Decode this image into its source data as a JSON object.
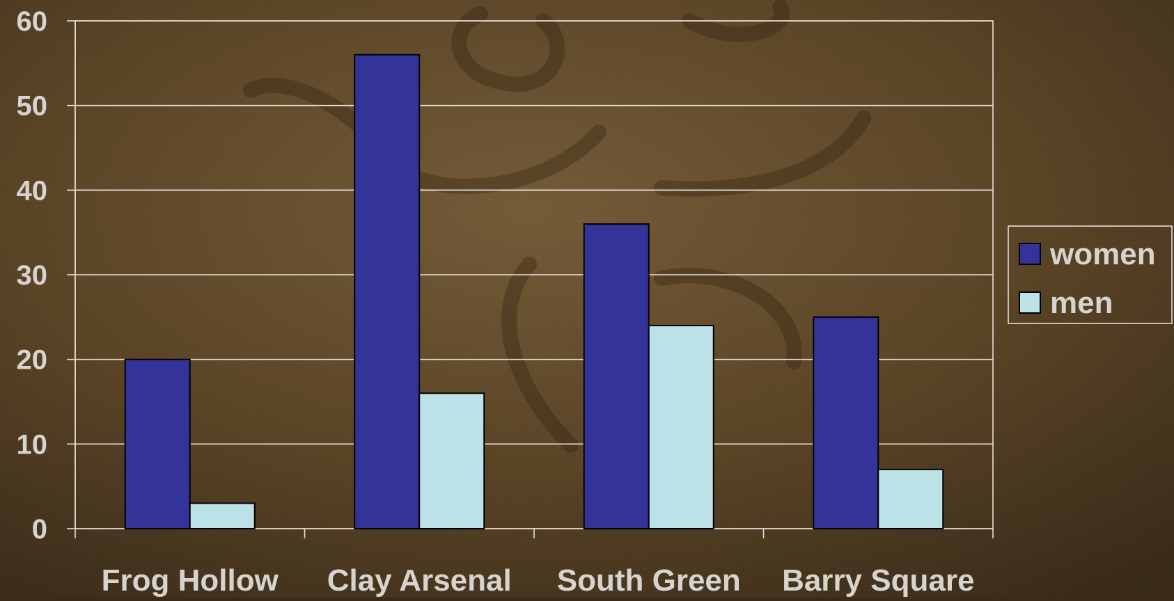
{
  "chart_data": {
    "type": "bar",
    "title": "",
    "xlabel": "",
    "ylabel": "",
    "categories": [
      "Frog Hollow",
      "Clay Arsenal",
      "South Green",
      "Barry Square"
    ],
    "series": [
      {
        "name": "women",
        "values": [
          20,
          56,
          36,
          25
        ],
        "color": "#333399"
      },
      {
        "name": "men",
        "values": [
          3,
          16,
          24,
          7
        ],
        "color": "#bce1e6"
      }
    ],
    "ylim": [
      0,
      60
    ],
    "yticks": [
      0,
      10,
      20,
      30,
      40,
      50,
      60
    ],
    "grid": true,
    "legend_position": "right",
    "colors": {
      "background": "#4a3519",
      "gridline": "#e6e2da",
      "text": "#d7d4cf",
      "bar_outline": "#000000"
    }
  }
}
